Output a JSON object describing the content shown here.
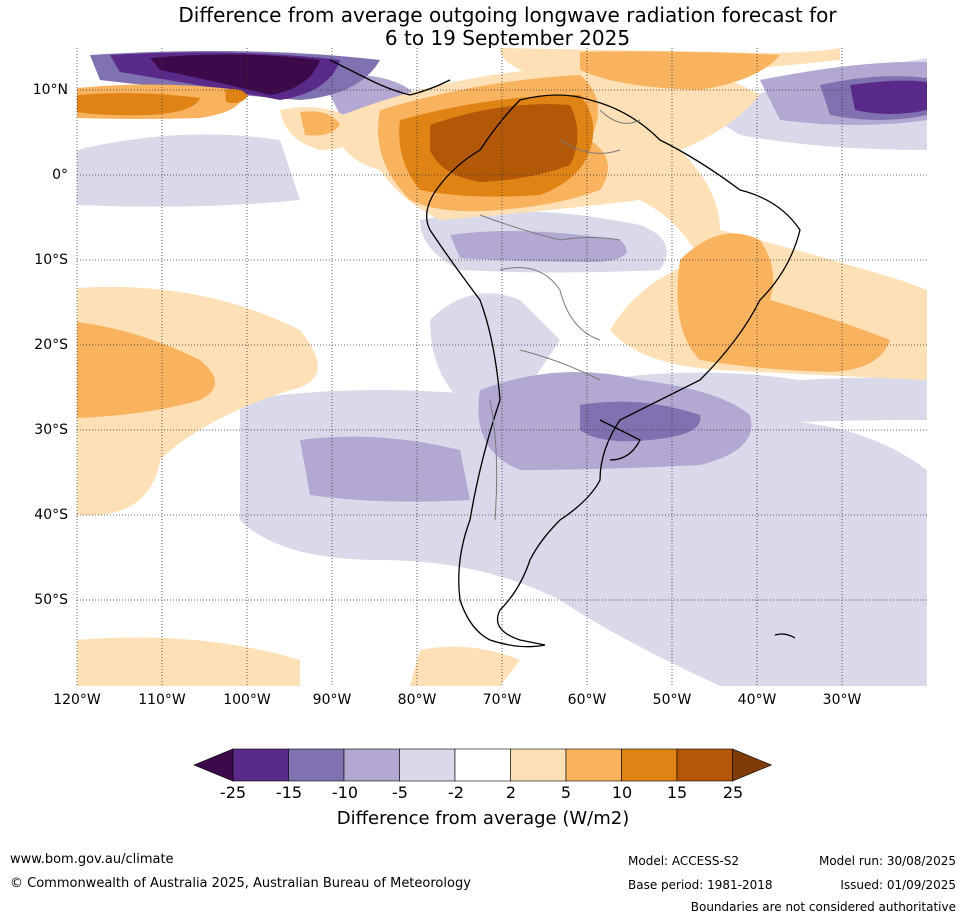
{
  "title_line1": "Difference from average outgoing longwave radiation forecast for",
  "title_line2": "6 to 19 September 2025",
  "lat_labels": [
    "10°N",
    "0°",
    "10°S",
    "20°S",
    "30°S",
    "40°S",
    "50°S"
  ],
  "lon_labels": [
    "120°W",
    "110°W",
    "100°W",
    "90°W",
    "80°W",
    "70°W",
    "60°W",
    "50°W",
    "40°W",
    "30°W"
  ],
  "colorbar": {
    "ticks": [
      "-25",
      "-15",
      "-10",
      "-5",
      "-2",
      "2",
      "5",
      "10",
      "15",
      "25"
    ],
    "colors": [
      "#3c0a4a",
      "#5a2a8a",
      "#8072b0",
      "#b2a8d2",
      "#d9d9ea",
      "#ffffff",
      "#fde0b6",
      "#f9b35f",
      "#e08315",
      "#b35806",
      "#7f3b08"
    ],
    "title": "Difference from average (W/m2)"
  },
  "footer": {
    "website": "www.bom.gov.au/climate",
    "copyright": "© Commonwealth of Australia 2025, Australian Bureau of Meteorology",
    "model": "Model: ACCESS-S2",
    "base_period": "Base period: 1981-2018",
    "model_run": "Model run: 30/08/2025",
    "issued": "Issued: 01/09/2025",
    "disclaimer": "Boundaries are not considered authoritative"
  }
}
